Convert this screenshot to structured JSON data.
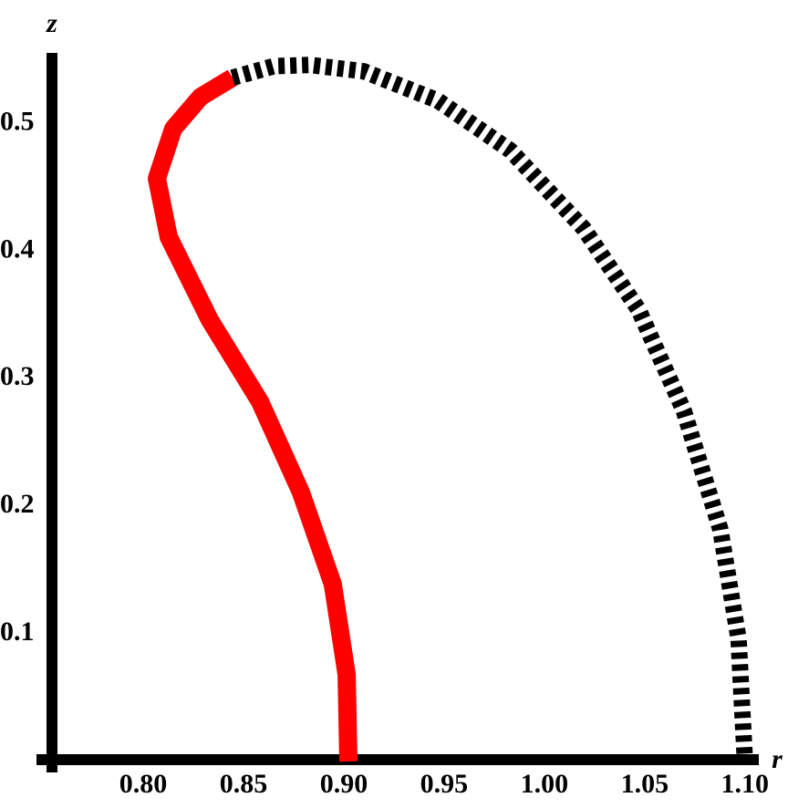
{
  "chart_data": {
    "type": "line",
    "xlabel": "r",
    "ylabel": "z",
    "xlim": [
      0.7545,
      1.106
    ],
    "ylim": [
      0,
      0.554
    ],
    "xticks": [
      {
        "value": 0.8,
        "label": "0.80"
      },
      0.85,
      {
        "value": 0.9,
        "label": "0.90"
      },
      0.95,
      {
        "value": 1.0,
        "label": "1.00"
      },
      1.05,
      {
        "value": 1.1,
        "label": "1.10"
      }
    ],
    "yticks": [
      0.1,
      0.2,
      0.3,
      0.4,
      0.5
    ],
    "series": [
      {
        "color": "#ff0000",
        "style": "solid",
        "x": [
          0.9023,
          0.9014,
          0.8945,
          0.8786,
          0.8582,
          0.8332,
          0.8127,
          0.8068,
          0.815,
          0.8286,
          0.8445
        ],
        "values": [
          0,
          0.068,
          0.139,
          0.211,
          0.282,
          0.346,
          0.411,
          0.457,
          0.496,
          0.521,
          0.536
        ]
      },
      {
        "color": "#000000",
        "style": "dashed",
        "x": [
          0.8445,
          0.865,
          0.883,
          0.91,
          0.947,
          0.983,
          1.0195,
          1.047,
          1.0695,
          1.0877,
          1.0968,
          1.1
        ],
        "values": [
          0.536,
          0.545,
          0.546,
          0.541,
          0.518,
          0.479,
          0.418,
          0.354,
          0.275,
          0.182,
          0.096,
          0
        ]
      }
    ]
  }
}
